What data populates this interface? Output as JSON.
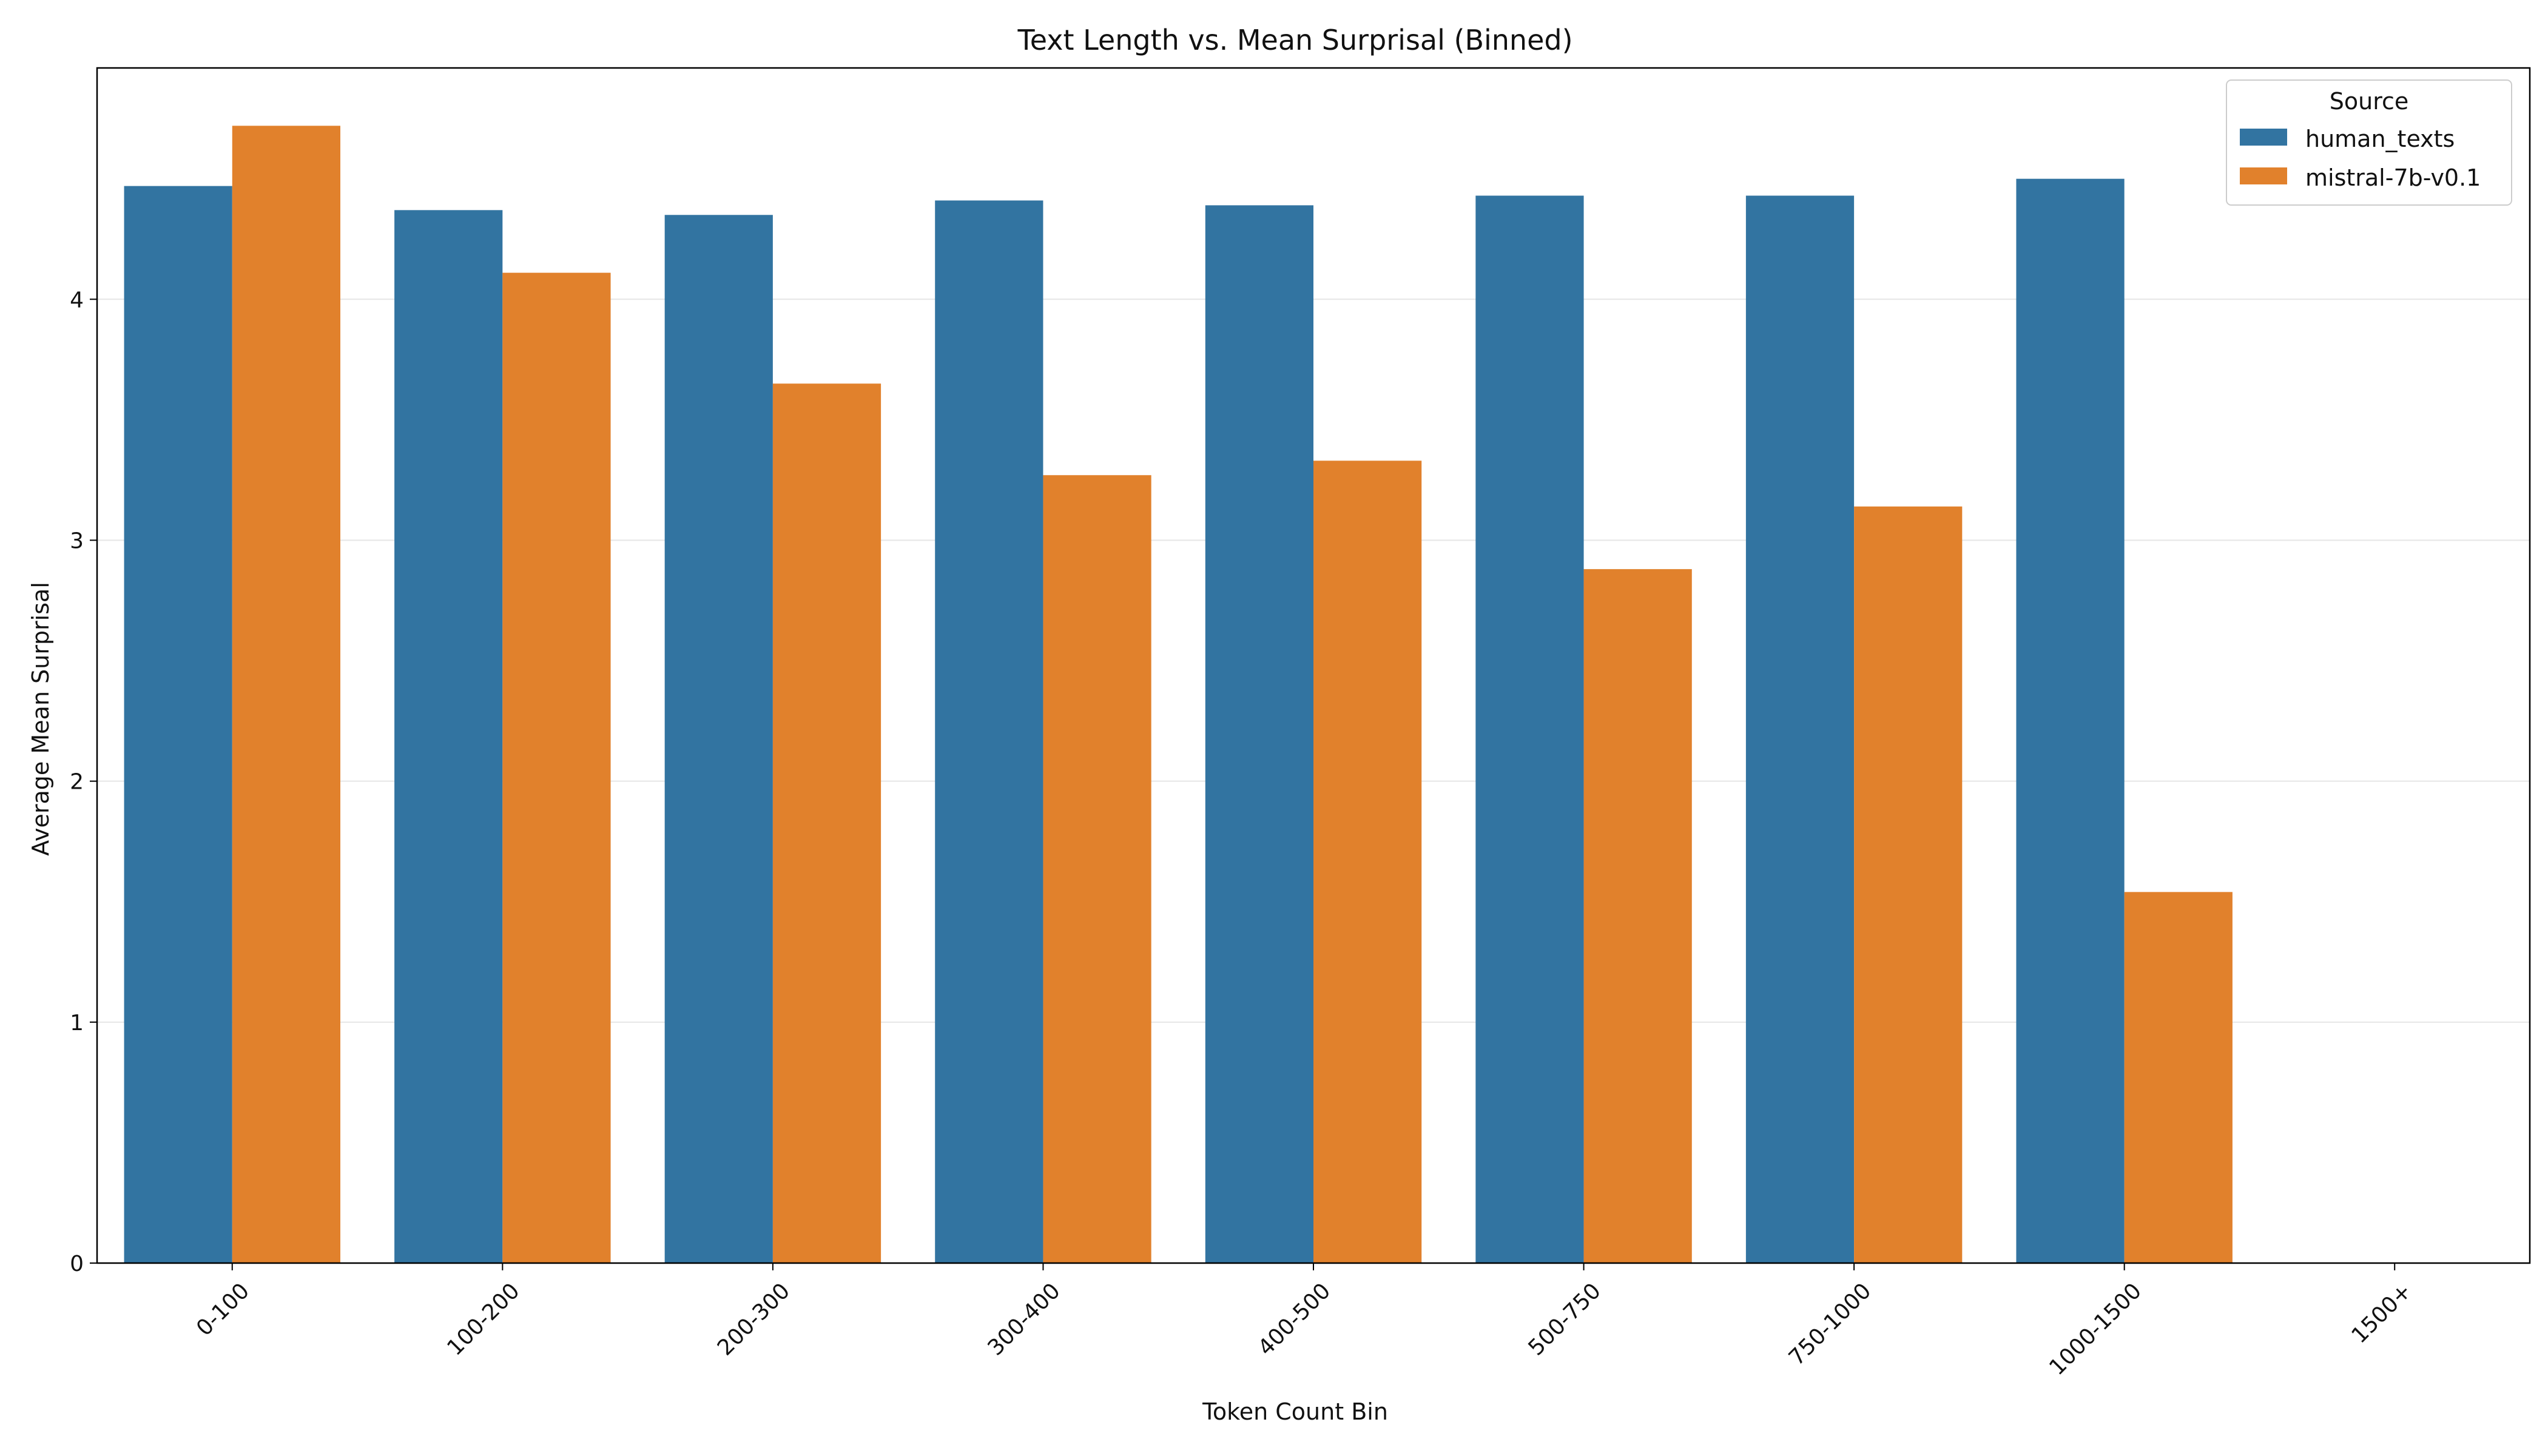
{
  "chart_data": {
    "type": "bar",
    "title": "Text Length vs. Mean Surprisal (Binned)",
    "xlabel": "Token Count Bin",
    "ylabel": "Average Mean Surprisal",
    "categories": [
      "0-100",
      "100-200",
      "200-300",
      "300-400",
      "400-500",
      "500-750",
      "750-1000",
      "1000-1500",
      "1500+"
    ],
    "series": [
      {
        "name": "human_texts",
        "color": "#3274a1",
        "values": [
          4.47,
          4.37,
          4.35,
          4.41,
          4.39,
          4.43,
          4.43,
          4.5,
          null
        ]
      },
      {
        "name": "mistral-7b-v0.1",
        "color": "#e1812c",
        "values": [
          4.72,
          4.11,
          3.65,
          3.27,
          3.33,
          2.88,
          3.14,
          1.54,
          null
        ]
      }
    ],
    "ylim": [
      0,
      4.96
    ],
    "yticks": [
      0,
      1,
      2,
      3,
      4
    ],
    "grid": "y",
    "legend": {
      "title": "Source",
      "placement": "top-right"
    }
  }
}
